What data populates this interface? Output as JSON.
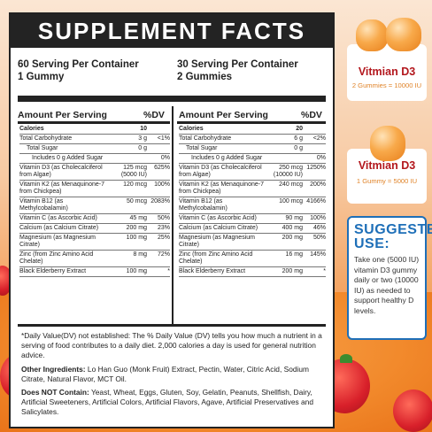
{
  "title": "SUPPLEMENT FACTS",
  "col1": {
    "line1": "60 Serving Per Container",
    "line2": "1 Gummy"
  },
  "col2": {
    "line1": "30 Serving Per Container",
    "line2": "2 Gummies"
  },
  "amount_header": "Amount Per Serving",
  "dv_header": "%DV",
  "rows1": [
    {
      "name": "Calories",
      "amt": "10",
      "dv": ""
    },
    {
      "name": "Total Carbohydrate",
      "amt": "3 g",
      "dv": "<1%"
    },
    {
      "name": "Total Sugar",
      "amt": "0 g",
      "dv": ""
    },
    {
      "name": "Includes 0 g Added Sugar",
      "amt": "",
      "dv": "0%"
    },
    {
      "name": "Vitamin D3 (as Cholecalciferol from Algae)",
      "amt": "125 mcg (5000 IU)",
      "dv": "625%"
    },
    {
      "name": "Vitamin K2 (as Menaquinone-7 from Chickpea)",
      "amt": "120 mcg",
      "dv": "100%"
    },
    {
      "name": "Vitamin B12 (as Methylcobalamin)",
      "amt": "50 mcg",
      "dv": "2083%"
    },
    {
      "name": "Vitamin C (as Ascorbic Acid)",
      "amt": "45 mg",
      "dv": "50%"
    },
    {
      "name": "Calcium (as Calcium Citrate)",
      "amt": "200 mg",
      "dv": "23%"
    },
    {
      "name": "Magnesium (as Magnesium Citrate)",
      "amt": "100 mg",
      "dv": "25%"
    },
    {
      "name": "Zinc (from Zinc Amino Acid Chelate)",
      "amt": "8 mg",
      "dv": "72%"
    },
    {
      "name": "Black Elderberry Extract",
      "amt": "100 mg",
      "dv": "*"
    }
  ],
  "rows2": [
    {
      "name": "Calories",
      "amt": "20",
      "dv": ""
    },
    {
      "name": "Total Carbohydrate",
      "amt": "6 g",
      "dv": "<2%"
    },
    {
      "name": "Total Sugar",
      "amt": "0 g",
      "dv": ""
    },
    {
      "name": "Includes 0 g Added Sugar",
      "amt": "",
      "dv": "0%"
    },
    {
      "name": "Vitamin D3 (as Cholecalciferol from Algae)",
      "amt": "250 mcg (10000 IU)",
      "dv": "1250%"
    },
    {
      "name": "Vitamin K2 (as Menaquinone-7 from Chickpea)",
      "amt": "240 mcg",
      "dv": "200%"
    },
    {
      "name": "Vitamin B12 (as Methylcobalamin)",
      "amt": "100 mcg",
      "dv": "4166%"
    },
    {
      "name": "Vitamin C (as Ascorbic Acid)",
      "amt": "90 mg",
      "dv": "100%"
    },
    {
      "name": "Calcium (as Calcium Citrate)",
      "amt": "400 mg",
      "dv": "46%"
    },
    {
      "name": "Magnesium (as Magnesium Citrate)",
      "amt": "200 mg",
      "dv": "50%"
    },
    {
      "name": "Zinc (from Zinc Amino Acid Chelate)",
      "amt": "16 mg",
      "dv": "145%"
    },
    {
      "name": "Black Elderberry Extract",
      "amt": "200 mg",
      "dv": "*"
    }
  ],
  "footnote": "*Daily Value(DV) not established: The % Daily Value (DV) tells you how much a nutrient in a serving of food contributes to a daily diet. 2,000 calories a day is used for general nutrition advice.",
  "other_label": "Other Ingredients:",
  "other_text": " Lo Han Guo (Monk Fruit) Extract, Pectin, Water, Citric Acid, Sodium Citrate, Natural Flavor, MCT Oil.",
  "notcontain_label": "Does NOT Contain:",
  "notcontain_text": " Yeast, Wheat, Eggs, Gluten, Soy, Gelatin, Peanuts, Shellfish, Dairy, Artificial Sweeteners, Artificial Colors, Artificial Flavors, Agave, Artificial Preservatives and Salicylates.",
  "card1": {
    "title": "Vitmian D3",
    "sub": "2 Gummies = 10000 IU"
  },
  "card2": {
    "title": "Vitmian D3",
    "sub": "1 Gummy = 5000 IU"
  },
  "suggested": {
    "heading_line1": "SUGGESTED",
    "heading_line2": "USE:",
    "body": "Take one (5000 IU) vitamin D3 gummy daily or two (10000 IU) as needed to support healthy D levels."
  },
  "colors": {
    "dark": "#232323",
    "red": "#b3171d",
    "orange": "#e0842a",
    "blue": "#1e6fb8"
  }
}
